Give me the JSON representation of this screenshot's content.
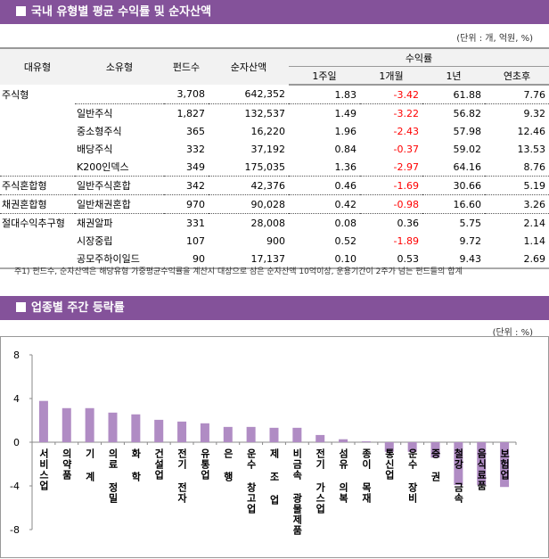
{
  "section1": {
    "title": "국내 유형별 평균 수익률 및 순자산액",
    "unit": "(단위 : 개, 억원, %)",
    "headers": {
      "major": "대유형",
      "minor": "소유형",
      "funds": "펀드수",
      "assets": "순자산액",
      "returns": "수익률",
      "w1": "1주일",
      "m1": "1개월",
      "y1": "1년",
      "ytd": "연초후"
    },
    "rows": [
      {
        "major": "주식형",
        "minor": "",
        "funds": "3,708",
        "assets": "642,352",
        "w1": "1.83",
        "m1": "-3.42",
        "y1": "61.88",
        "ytd": "7.76"
      },
      {
        "major": "",
        "minor": "일반주식",
        "funds": "1,827",
        "assets": "132,537",
        "w1": "1.49",
        "m1": "-3.22",
        "y1": "56.82",
        "ytd": "9.32"
      },
      {
        "major": "",
        "minor": "중소형주식",
        "funds": "365",
        "assets": "16,220",
        "w1": "1.96",
        "m1": "-2.43",
        "y1": "57.98",
        "ytd": "12.46"
      },
      {
        "major": "",
        "minor": "배당주식",
        "funds": "332",
        "assets": "37,192",
        "w1": "0.84",
        "m1": "-0.37",
        "y1": "59.02",
        "ytd": "13.53"
      },
      {
        "major": "",
        "minor": "K200인덱스",
        "funds": "349",
        "assets": "175,035",
        "w1": "1.36",
        "m1": "-2.97",
        "y1": "64.16",
        "ytd": "8.76"
      },
      {
        "major": "주식혼합형",
        "minor": "일반주식혼합",
        "funds": "342",
        "assets": "42,376",
        "w1": "0.46",
        "m1": "-1.69",
        "y1": "30.66",
        "ytd": "5.19"
      },
      {
        "major": "채권혼합형",
        "minor": "일반채권혼합",
        "funds": "970",
        "assets": "90,028",
        "w1": "0.42",
        "m1": "-0.98",
        "y1": "16.60",
        "ytd": "3.26"
      },
      {
        "major": "절대수익추구형",
        "minor": "채권알파",
        "funds": "331",
        "assets": "28,008",
        "w1": "0.08",
        "m1": "0.36",
        "y1": "5.75",
        "ytd": "2.14"
      },
      {
        "major": "",
        "minor": "시장중립",
        "funds": "107",
        "assets": "900",
        "w1": "0.52",
        "m1": "-1.89",
        "y1": "9.72",
        "ytd": "1.14"
      },
      {
        "major": "",
        "minor": "공모주하이일드",
        "funds": "90",
        "assets": "17,137",
        "w1": "0.10",
        "m1": "0.53",
        "y1": "9.43",
        "ytd": "2.69"
      }
    ],
    "note": "주1) 펀드수, 순자산액은 해당유형 가중평균수익률을 계산시 대상으로 삼은 순자산액 10억이상, 운용기간이 2주가 넘는 펀드들의 합계"
  },
  "section2": {
    "title": "업종별 주간 등락률",
    "unit": "(단위 : %)"
  },
  "colors": {
    "header": "#84529a",
    "bar": "#b08cc4",
    "negative": "#ff0000"
  },
  "chart_data": {
    "type": "bar",
    "title": "",
    "xlabel": "",
    "ylabel": "",
    "ylim": [
      -8,
      8
    ],
    "yticks": [
      8,
      4,
      0,
      -4,
      -8
    ],
    "grid": false,
    "legend": "none",
    "categories": [
      "서비스업",
      "의약품",
      "기 계",
      "의료 정밀",
      "화 학",
      "건설업",
      "전기 전자",
      "유통업",
      "은 행",
      "운수 창고업",
      "제 조 업",
      "비금속 광물제품",
      "전기 가스업",
      "섬유 의복",
      "종이 목재",
      "통신업",
      "운수 장비",
      "증 권",
      "철강 금속",
      "음식료품",
      "보험업"
    ],
    "values": [
      3.78,
      3.12,
      3.12,
      2.71,
      2.55,
      2.05,
      1.89,
      1.73,
      1.4,
      1.4,
      1.32,
      1.32,
      0.66,
      0.27,
      0.08,
      -0.88,
      -0.88,
      -1.42,
      -3.92,
      -3.92,
      -4.1
    ]
  }
}
